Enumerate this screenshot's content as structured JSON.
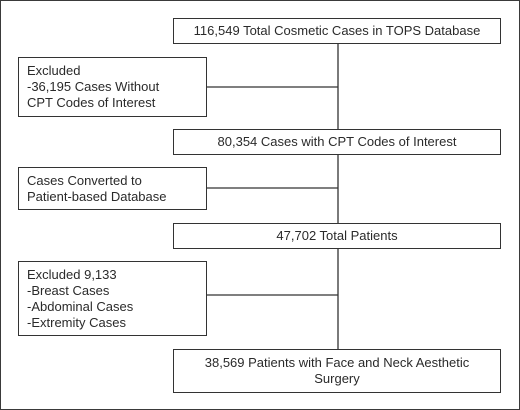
{
  "flowchart": {
    "main_steps": [
      {
        "id": "total_cosmetic",
        "lines": [
          "116,549 Total Cosmetic Cases in TOPS Database"
        ]
      },
      {
        "id": "cpt_cases",
        "lines": [
          "80,354 Cases with CPT Codes of Interest"
        ]
      },
      {
        "id": "total_patients",
        "lines": [
          "47,702 Total Patients"
        ]
      },
      {
        "id": "face_neck",
        "lines": [
          "38,569 Patients with Face and Neck Aesthetic",
          "Surgery"
        ]
      }
    ],
    "side_notes": [
      {
        "id": "excluded_cpt",
        "lines": [
          "Excluded",
          "-36,195 Cases Without",
          "CPT Codes of Interest"
        ]
      },
      {
        "id": "converted",
        "lines": [
          "Cases Converted to",
          "Patient-based Database"
        ]
      },
      {
        "id": "excluded_regions",
        "lines": [
          "Excluded 9,133",
          "-Breast Cases",
          "-Abdominal Cases",
          "-Extremity Cases"
        ]
      }
    ]
  },
  "colors": {
    "border": "#333333",
    "text": "#2a2a2a",
    "background": "#ffffff"
  }
}
